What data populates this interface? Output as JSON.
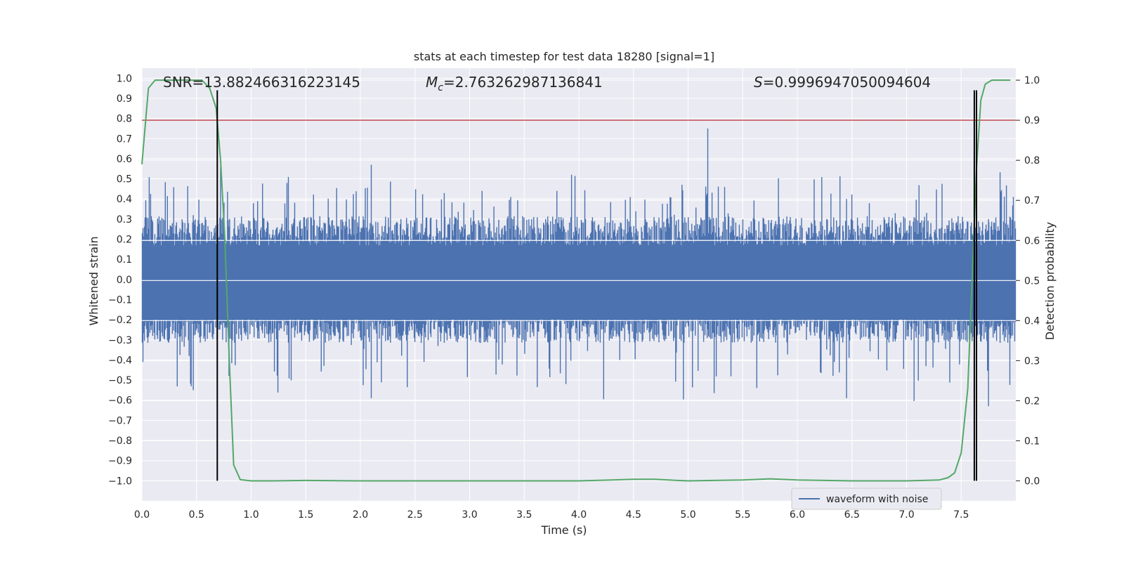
{
  "chart_data": {
    "type": "line",
    "title": "stats at each timestep for test data 18280 [signal=1]",
    "xlabel": "Time (s)",
    "ylabel": "Whitened strain",
    "ylabel_right": "Detection probability",
    "xlim": [
      0.0,
      8.0
    ],
    "ylim": [
      -1.1,
      1.05
    ],
    "ylim_right": [
      -0.05,
      1.03
    ],
    "x_ticks": [
      "0.0",
      "0.5",
      "1.0",
      "1.5",
      "2.0",
      "2.5",
      "3.0",
      "3.5",
      "4.0",
      "4.5",
      "5.0",
      "5.5",
      "6.0",
      "6.5",
      "7.0",
      "7.5"
    ],
    "y_ticks": [
      "1.0",
      "0.9",
      "0.8",
      "0.7",
      "0.6",
      "0.5",
      "0.4",
      "0.3",
      "0.2",
      "0.1",
      "0.0",
      "−0.1",
      "−0.2",
      "−0.3",
      "−0.4",
      "−0.5",
      "−0.6",
      "−0.7",
      "−0.8",
      "−0.9",
      "−1.0"
    ],
    "y_ticks_right": [
      "1.0",
      "0.9",
      "0.8",
      "0.7",
      "0.6",
      "0.5",
      "0.4",
      "0.3",
      "0.2",
      "0.1",
      "0.0"
    ],
    "annotations": {
      "snr": "SNR=13.882466316223145",
      "mc_symbol": "M",
      "mc_sub": "c",
      "mc_value": "=2.763262987136841",
      "s_symbol": "S",
      "s_value": "=0.9996947050094604"
    },
    "threshold_right": 0.9,
    "detection_markers_x": [
      0.69,
      7.62,
      7.64
    ],
    "marker_y_range": [
      -1.0,
      0.94
    ],
    "colors": {
      "background": "#eaeaf2",
      "grid": "#ffffff",
      "waveform": "#4c72b0",
      "probability": "#55a868",
      "threshold": "#c44e52",
      "markers": "#000000"
    },
    "series": [
      {
        "name": "waveform with noise",
        "axis": "left",
        "envelope_summary": {
          "typical_max": 0.3,
          "typical_min": -0.3,
          "peak_max": 0.75,
          "peak_min": -0.63
        }
      },
      {
        "axis": "right",
        "x": [
          0.0,
          0.06,
          0.12,
          0.18,
          0.3,
          0.45,
          0.55,
          0.62,
          0.68,
          0.72,
          0.76,
          0.8,
          0.84,
          0.9,
          1.0,
          1.2,
          1.5,
          2.0,
          3.0,
          4.0,
          4.3,
          4.5,
          4.7,
          4.9,
          5.0,
          5.5,
          5.75,
          6.0,
          6.5,
          7.0,
          7.3,
          7.38,
          7.44,
          7.5,
          7.56,
          7.6,
          7.64,
          7.68,
          7.72,
          7.78,
          7.85,
          7.95
        ],
        "y": [
          0.79,
          0.98,
          1.0,
          1.0,
          1.0,
          1.0,
          1.0,
          0.98,
          0.93,
          0.8,
          0.6,
          0.3,
          0.04,
          0.003,
          0.0,
          0.0,
          0.001,
          0.0,
          0.0,
          0.0,
          0.002,
          0.004,
          0.004,
          0.001,
          0.0,
          0.002,
          0.005,
          0.002,
          0.0,
          0.0,
          0.002,
          0.008,
          0.02,
          0.07,
          0.23,
          0.5,
          0.78,
          0.95,
          0.99,
          1.0,
          1.0,
          1.0
        ]
      }
    ],
    "legend": {
      "placement": "bottom-right"
    }
  }
}
